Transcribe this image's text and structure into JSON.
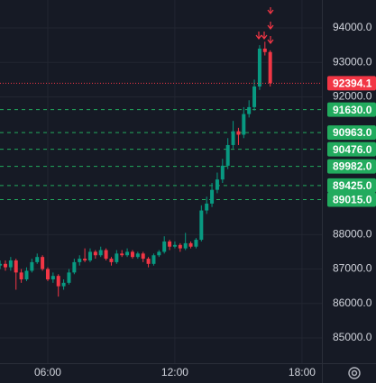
{
  "chart_data": {
    "type": "candlestick",
    "x": [
      3.75,
      4,
      4.25,
      4.5,
      4.75,
      5,
      5.25,
      5.5,
      5.75,
      6,
      6.25,
      6.5,
      6.75,
      7,
      7.25,
      7.5,
      7.75,
      8,
      8.25,
      8.5,
      8.75,
      9,
      9.25,
      9.5,
      9.75,
      10,
      10.25,
      10.5,
      10.75,
      11,
      11.25,
      11.5,
      11.75,
      12,
      12.25,
      12.5,
      12.75,
      13,
      13.25,
      13.5,
      13.75,
      14,
      14.25,
      14.5,
      14.75,
      15,
      15.25,
      15.5,
      15.75,
      16,
      16.25,
      16.5
    ],
    "open": [
      87100,
      87150,
      87050,
      87250,
      86900,
      86700,
      86950,
      87200,
      87350,
      87000,
      86700,
      86800,
      86500,
      86600,
      86900,
      87200,
      87300,
      87250,
      87500,
      87400,
      87550,
      87300,
      87200,
      87450,
      87400,
      87500,
      87350,
      87450,
      87300,
      87150,
      87400,
      87500,
      87800,
      87650,
      87700,
      87600,
      87750,
      87650,
      87850,
      88700,
      88900,
      89300,
      89600,
      90000,
      90600,
      91000,
      90900,
      91500,
      91700,
      92300,
      93400,
      93300
    ],
    "high": [
      87250,
      87250,
      87350,
      87300,
      87000,
      87050,
      87300,
      87450,
      87400,
      87050,
      86900,
      86850,
      86700,
      87000,
      87300,
      87400,
      87600,
      87600,
      87550,
      87650,
      87600,
      87350,
      87550,
      87550,
      87600,
      87550,
      87500,
      87500,
      87350,
      87450,
      87550,
      87950,
      87850,
      87800,
      87750,
      88050,
      87800,
      87900,
      88850,
      89100,
      89500,
      89800,
      90200,
      90800,
      91300,
      91100,
      91700,
      91900,
      92500,
      93500,
      93600,
      93350
    ],
    "low": [
      87000,
      86950,
      86950,
      86400,
      86600,
      86650,
      86900,
      87150,
      86950,
      86650,
      86600,
      86200,
      86400,
      86550,
      86850,
      87100,
      87200,
      87200,
      87300,
      87350,
      87250,
      87100,
      87150,
      87350,
      87350,
      87300,
      87300,
      87200,
      87050,
      87100,
      87350,
      87450,
      87550,
      87600,
      87500,
      87550,
      87600,
      87600,
      87800,
      88600,
      88800,
      89200,
      89500,
      89900,
      90500,
      90600,
      90800,
      91400,
      91600,
      92200,
      93200,
      92300
    ],
    "close": [
      87150,
      87050,
      87250,
      86900,
      86700,
      86950,
      87200,
      87350,
      87000,
      86700,
      86800,
      86500,
      86600,
      86900,
      87200,
      87300,
      87250,
      87500,
      87400,
      87550,
      87300,
      87200,
      87450,
      87400,
      87500,
      87350,
      87450,
      87300,
      87150,
      87400,
      87500,
      87800,
      87650,
      87700,
      87600,
      87750,
      87650,
      87850,
      88700,
      88900,
      89300,
      89600,
      90000,
      90600,
      91000,
      90900,
      91500,
      91700,
      92300,
      93400,
      93300,
      92394.1
    ],
    "up_color": "#089981",
    "down_color": "#f23645",
    "xlim": [
      3.745,
      18.94
    ],
    "ylim": [
      84267,
      94811
    ],
    "xticks": [
      {
        "value": 6,
        "label": "06:00"
      },
      {
        "value": 12,
        "label": "12:00"
      },
      {
        "value": 18,
        "label": "18:00"
      }
    ],
    "yticks": [
      {
        "value": 94000,
        "label": "94000.0"
      },
      {
        "value": 93000,
        "label": "93000.0"
      },
      {
        "value": 92000,
        "label": "92000.0"
      },
      {
        "value": 88000,
        "label": "88000.0"
      },
      {
        "value": 87000,
        "label": "87000.0"
      },
      {
        "value": 86000,
        "label": "86000.0"
      },
      {
        "value": 85000,
        "label": "85000.0"
      }
    ],
    "grid": true,
    "levels": [
      {
        "value": 91630,
        "label": "91630.0"
      },
      {
        "value": 90963,
        "label": "90963.0"
      },
      {
        "value": 90476,
        "label": "90476.0"
      },
      {
        "value": 89982,
        "label": "89982.0"
      },
      {
        "value": 89425,
        "label": "89425.0"
      },
      {
        "value": 89015,
        "label": "89015.0"
      }
    ],
    "level_color": "#22ab5e",
    "last_price": 92394.1,
    "last_price_color": "#f23645"
  }
}
